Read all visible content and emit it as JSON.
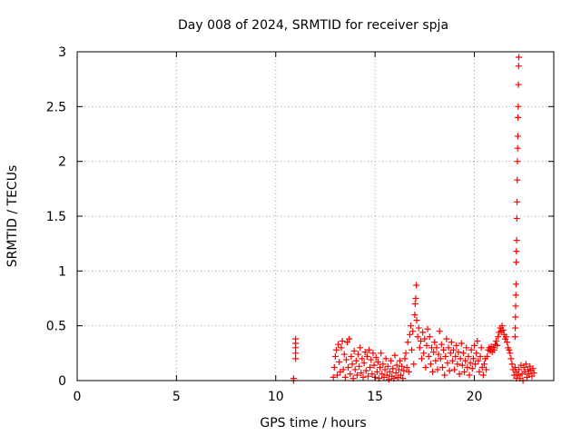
{
  "chart_data": {
    "type": "scatter",
    "title": "Day 008 of 2024, SRMTID for receiver spja",
    "xlabel": "GPS time / hours",
    "ylabel": "SRMTID / TECUs",
    "xlim": [
      0,
      24
    ],
    "ylim": [
      0,
      3
    ],
    "xticks": [
      0,
      5,
      10,
      15,
      20
    ],
    "xtick_labels": [
      "0",
      "5",
      "10",
      "15",
      "20"
    ],
    "yticks": [
      0,
      0.5,
      1,
      1.5,
      2,
      2.5,
      3
    ],
    "ytick_labels": [
      "0",
      "0.5",
      "1",
      "1.5",
      "2",
      "2.5",
      "3"
    ],
    "grid": true,
    "marker": "plus",
    "series": [
      {
        "name": "SRMTID",
        "color": "#ff0000",
        "points": [
          [
            10.9,
            0.0
          ],
          [
            10.9,
            0.02
          ],
          [
            11.0,
            0.2
          ],
          [
            11.0,
            0.25
          ],
          [
            11.0,
            0.3
          ],
          [
            11.0,
            0.34
          ],
          [
            11.0,
            0.38
          ],
          [
            12.9,
            0.03
          ],
          [
            12.95,
            0.12
          ],
          [
            13.0,
            0.22
          ],
          [
            13.05,
            0.28
          ],
          [
            13.1,
            0.05
          ],
          [
            13.15,
            0.33
          ],
          [
            13.2,
            0.17
          ],
          [
            13.25,
            0.08
          ],
          [
            13.3,
            0.3
          ],
          [
            13.35,
            0.36
          ],
          [
            13.4,
            0.1
          ],
          [
            13.45,
            0.24
          ],
          [
            13.5,
            0.03
          ],
          [
            13.55,
            0.19
          ],
          [
            13.6,
            0.35
          ],
          [
            13.65,
            0.12
          ],
          [
            13.7,
            0.38
          ],
          [
            13.75,
            0.06
          ],
          [
            13.8,
            0.22
          ],
          [
            13.85,
            0.15
          ],
          [
            13.9,
            0.02
          ],
          [
            13.95,
            0.27
          ],
          [
            14.0,
            0.1
          ],
          [
            14.05,
            0.18
          ],
          [
            14.1,
            0.05
          ],
          [
            14.15,
            0.24
          ],
          [
            14.2,
            0.13
          ],
          [
            14.25,
            0.3
          ],
          [
            14.3,
            0.07
          ],
          [
            14.35,
            0.2
          ],
          [
            14.4,
            0.03
          ],
          [
            14.45,
            0.16
          ],
          [
            14.5,
            0.26
          ],
          [
            14.55,
            0.09
          ],
          [
            14.6,
            0.22
          ],
          [
            14.65,
            0.04
          ],
          [
            14.7,
            0.28
          ],
          [
            14.75,
            0.12
          ],
          [
            14.8,
            0.19
          ],
          [
            14.85,
            0.06
          ],
          [
            14.9,
            0.25
          ],
          [
            14.95,
            0.14
          ],
          [
            15.0,
            0.03
          ],
          [
            15.05,
            0.21
          ],
          [
            15.1,
            0.08
          ],
          [
            15.15,
            0.17
          ],
          [
            15.2,
            0.02
          ],
          [
            15.25,
            0.12
          ],
          [
            15.3,
            0.25
          ],
          [
            15.35,
            0.06
          ],
          [
            15.4,
            0.15
          ],
          [
            15.45,
            0.03
          ],
          [
            15.5,
            0.1
          ],
          [
            15.55,
            0.2
          ],
          [
            15.6,
            0.05
          ],
          [
            15.65,
            0.13
          ],
          [
            15.7,
            0.01
          ],
          [
            15.75,
            0.08
          ],
          [
            15.8,
            0.18
          ],
          [
            15.85,
            0.04
          ],
          [
            15.9,
            0.11
          ],
          [
            15.95,
            0.02
          ],
          [
            16.0,
            0.23
          ],
          [
            16.05,
            0.07
          ],
          [
            16.1,
            0.14
          ],
          [
            16.15,
            0.03
          ],
          [
            16.2,
            0.1
          ],
          [
            16.25,
            0.18
          ],
          [
            16.3,
            0.05
          ],
          [
            16.35,
            0.13
          ],
          [
            16.4,
            0.02
          ],
          [
            16.45,
            0.09
          ],
          [
            16.5,
            0.2
          ],
          [
            16.55,
            0.25
          ],
          [
            16.6,
            0.12
          ],
          [
            16.65,
            0.35
          ],
          [
            16.7,
            0.08
          ],
          [
            16.75,
            0.42
          ],
          [
            16.8,
            0.5
          ],
          [
            16.85,
            0.28
          ],
          [
            16.9,
            0.45
          ],
          [
            16.95,
            0.15
          ],
          [
            17.0,
            0.6
          ],
          [
            17.02,
            0.7
          ],
          [
            17.05,
            0.75
          ],
          [
            17.08,
            0.87
          ],
          [
            17.1,
            0.55
          ],
          [
            17.15,
            0.4
          ],
          [
            17.2,
            0.48
          ],
          [
            17.25,
            0.3
          ],
          [
            17.3,
            0.36
          ],
          [
            17.35,
            0.2
          ],
          [
            17.4,
            0.44
          ],
          [
            17.45,
            0.25
          ],
          [
            17.5,
            0.38
          ],
          [
            17.55,
            0.12
          ],
          [
            17.6,
            0.32
          ],
          [
            17.65,
            0.47
          ],
          [
            17.7,
            0.22
          ],
          [
            17.75,
            0.4
          ],
          [
            17.8,
            0.15
          ],
          [
            17.85,
            0.3
          ],
          [
            17.9,
            0.08
          ],
          [
            17.95,
            0.26
          ],
          [
            18.0,
            0.35
          ],
          [
            18.05,
            0.18
          ],
          [
            18.1,
            0.3
          ],
          [
            18.15,
            0.1
          ],
          [
            18.2,
            0.24
          ],
          [
            18.25,
            0.45
          ],
          [
            18.3,
            0.2
          ],
          [
            18.35,
            0.33
          ],
          [
            18.4,
            0.12
          ],
          [
            18.45,
            0.28
          ],
          [
            18.5,
            0.05
          ],
          [
            18.55,
            0.22
          ],
          [
            18.6,
            0.38
          ],
          [
            18.65,
            0.16
          ],
          [
            18.7,
            0.3
          ],
          [
            18.75,
            0.09
          ],
          [
            18.8,
            0.25
          ],
          [
            18.85,
            0.35
          ],
          [
            18.9,
            0.18
          ],
          [
            18.95,
            0.28
          ],
          [
            19.0,
            0.1
          ],
          [
            19.05,
            0.22
          ],
          [
            19.1,
            0.32
          ],
          [
            19.15,
            0.15
          ],
          [
            19.2,
            0.26
          ],
          [
            19.25,
            0.06
          ],
          [
            19.3,
            0.2
          ],
          [
            19.35,
            0.34
          ],
          [
            19.4,
            0.14
          ],
          [
            19.45,
            0.25
          ],
          [
            19.5,
            0.08
          ],
          [
            19.55,
            0.18
          ],
          [
            19.6,
            0.3
          ],
          [
            19.65,
            0.12
          ],
          [
            19.7,
            0.22
          ],
          [
            19.75,
            0.05
          ],
          [
            19.8,
            0.16
          ],
          [
            19.85,
            0.28
          ],
          [
            19.9,
            0.11
          ],
          [
            19.95,
            0.2
          ],
          [
            20.0,
            0.32
          ],
          [
            20.05,
            0.15
          ],
          [
            20.1,
            0.25
          ],
          [
            20.15,
            0.36
          ],
          [
            20.2,
            0.18
          ],
          [
            20.25,
            0.08
          ],
          [
            20.3,
            0.22
          ],
          [
            20.35,
            0.3
          ],
          [
            20.4,
            0.12
          ],
          [
            20.45,
            0.05
          ],
          [
            20.5,
            0.15
          ],
          [
            20.55,
            0.2
          ],
          [
            20.6,
            0.1
          ],
          [
            20.65,
            0.22
          ],
          [
            20.7,
            0.28
          ],
          [
            20.75,
            0.3
          ],
          [
            20.8,
            0.27
          ],
          [
            20.85,
            0.31
          ],
          [
            20.9,
            0.26
          ],
          [
            20.95,
            0.3
          ],
          [
            21.0,
            0.28
          ],
          [
            21.05,
            0.33
          ],
          [
            21.1,
            0.36
          ],
          [
            21.15,
            0.32
          ],
          [
            21.2,
            0.4
          ],
          [
            21.25,
            0.44
          ],
          [
            21.3,
            0.48
          ],
          [
            21.35,
            0.45
          ],
          [
            21.4,
            0.5
          ],
          [
            21.45,
            0.46
          ],
          [
            21.5,
            0.42
          ],
          [
            21.55,
            0.38
          ],
          [
            21.6,
            0.4
          ],
          [
            21.65,
            0.35
          ],
          [
            21.7,
            0.3
          ],
          [
            21.75,
            0.28
          ],
          [
            21.8,
            0.25
          ],
          [
            21.85,
            0.2
          ],
          [
            21.9,
            0.15
          ],
          [
            21.95,
            0.1
          ],
          [
            22.0,
            0.05
          ],
          [
            22.05,
            0.12
          ],
          [
            22.1,
            0.08
          ],
          [
            22.12,
            0.02
          ],
          [
            22.05,
            0.4
          ],
          [
            22.06,
            0.48
          ],
          [
            22.07,
            0.58
          ],
          [
            22.08,
            0.68
          ],
          [
            22.09,
            0.78
          ],
          [
            22.1,
            0.88
          ],
          [
            22.11,
            1.08
          ],
          [
            22.12,
            1.18
          ],
          [
            22.13,
            1.28
          ],
          [
            22.14,
            1.48
          ],
          [
            22.15,
            1.63
          ],
          [
            22.16,
            1.83
          ],
          [
            22.17,
            2.0
          ],
          [
            22.18,
            2.12
          ],
          [
            22.19,
            2.23
          ],
          [
            22.2,
            2.4
          ],
          [
            22.21,
            2.5
          ],
          [
            22.22,
            2.7
          ],
          [
            22.23,
            2.87
          ],
          [
            22.24,
            2.95
          ],
          [
            22.2,
            0.05
          ],
          [
            22.25,
            0.1
          ],
          [
            22.3,
            0.02
          ],
          [
            22.35,
            0.14
          ],
          [
            22.4,
            0.06
          ],
          [
            22.45,
            0.0
          ],
          [
            22.5,
            0.12
          ],
          [
            22.55,
            0.08
          ],
          [
            22.6,
            0.15
          ],
          [
            22.65,
            0.03
          ],
          [
            22.7,
            0.1
          ],
          [
            22.75,
            0.06
          ],
          [
            22.8,
            0.13
          ],
          [
            22.85,
            0.09
          ],
          [
            22.9,
            0.04
          ],
          [
            22.95,
            0.11
          ],
          [
            23.0,
            0.07
          ]
        ]
      }
    ]
  }
}
